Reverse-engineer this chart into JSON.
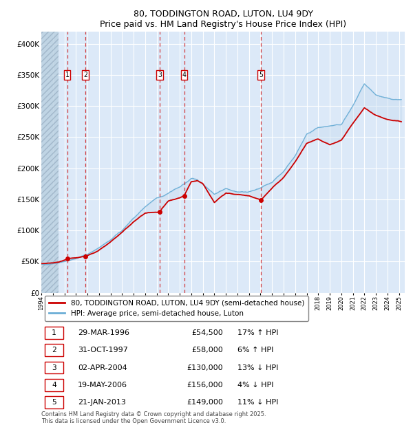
{
  "title": "80, TODDINGTON ROAD, LUTON, LU4 9DY",
  "subtitle": "Price paid vs. HM Land Registry's House Price Index (HPI)",
  "xlim_start": 1994.0,
  "xlim_end": 2025.5,
  "ylim_min": 0,
  "ylim_max": 420000,
  "yticks": [
    0,
    50000,
    100000,
    150000,
    200000,
    250000,
    300000,
    350000,
    400000
  ],
  "background_color": "#dce9f8",
  "hatch_region_end": 1995.5,
  "sale_dates_x": [
    1996.24,
    1997.83,
    2004.25,
    2006.38,
    2013.05
  ],
  "sale_prices_y": [
    54500,
    58000,
    130000,
    156000,
    149000
  ],
  "sale_labels": [
    "1",
    "2",
    "3",
    "4",
    "5"
  ],
  "sale_line_color": "#cc0000",
  "hpi_line_color": "#6baed6",
  "hpi_fill_color": "#c6dbef",
  "legend_house_label": "80, TODDINGTON ROAD, LUTON, LU4 9DY (semi-detached house)",
  "legend_hpi_label": "HPI: Average price, semi-detached house, Luton",
  "table_rows": [
    [
      "1",
      "29-MAR-1996",
      "£54,500",
      "17% ↑ HPI"
    ],
    [
      "2",
      "31-OCT-1997",
      "£58,000",
      "6% ↑ HPI"
    ],
    [
      "3",
      "02-APR-2004",
      "£130,000",
      "13% ↓ HPI"
    ],
    [
      "4",
      "19-MAY-2006",
      "£156,000",
      "4% ↓ HPI"
    ],
    [
      "5",
      "21-JAN-2013",
      "£149,000",
      "11% ↓ HPI"
    ]
  ],
  "footer_text": "Contains HM Land Registry data © Crown copyright and database right 2025.\nThis data is licensed under the Open Government Licence v3.0.",
  "grid_color": "#ffffff",
  "hpi_anchors": [
    [
      1994.0,
      45000
    ],
    [
      1995.0,
      47000
    ],
    [
      1996.0,
      50000
    ],
    [
      1997.0,
      55000
    ],
    [
      1998.0,
      62000
    ],
    [
      1999.0,
      72000
    ],
    [
      2000.0,
      85000
    ],
    [
      2001.0,
      100000
    ],
    [
      2002.0,
      120000
    ],
    [
      2003.0,
      138000
    ],
    [
      2004.0,
      152000
    ],
    [
      2004.5,
      155000
    ],
    [
      2005.0,
      160000
    ],
    [
      2006.0,
      170000
    ],
    [
      2007.0,
      183000
    ],
    [
      2007.5,
      182000
    ],
    [
      2008.0,
      175000
    ],
    [
      2009.0,
      158000
    ],
    [
      2010.0,
      168000
    ],
    [
      2011.0,
      162000
    ],
    [
      2012.0,
      162000
    ],
    [
      2013.0,
      168000
    ],
    [
      2014.0,
      178000
    ],
    [
      2015.0,
      195000
    ],
    [
      2016.0,
      220000
    ],
    [
      2017.0,
      255000
    ],
    [
      2018.0,
      265000
    ],
    [
      2019.0,
      268000
    ],
    [
      2020.0,
      270000
    ],
    [
      2021.0,
      300000
    ],
    [
      2022.0,
      335000
    ],
    [
      2023.0,
      318000
    ],
    [
      2024.0,
      312000
    ],
    [
      2025.2,
      310000
    ]
  ],
  "red_anchors": [
    [
      1994.0,
      46000
    ],
    [
      1995.5,
      49000
    ],
    [
      1996.24,
      54500
    ],
    [
      1997.83,
      58000
    ],
    [
      1999.0,
      68000
    ],
    [
      2000.0,
      82000
    ],
    [
      2001.0,
      97000
    ],
    [
      2002.0,
      114000
    ],
    [
      2003.0,
      128000
    ],
    [
      2004.25,
      130000
    ],
    [
      2005.0,
      148000
    ],
    [
      2006.0,
      152000
    ],
    [
      2006.38,
      156000
    ],
    [
      2007.0,
      178000
    ],
    [
      2007.5,
      180000
    ],
    [
      2008.0,
      175000
    ],
    [
      2009.0,
      145000
    ],
    [
      2010.0,
      160000
    ],
    [
      2011.0,
      158000
    ],
    [
      2012.0,
      156000
    ],
    [
      2013.05,
      149000
    ],
    [
      2014.0,
      168000
    ],
    [
      2015.0,
      185000
    ],
    [
      2016.0,
      210000
    ],
    [
      2017.0,
      240000
    ],
    [
      2018.0,
      247000
    ],
    [
      2019.0,
      238000
    ],
    [
      2020.0,
      245000
    ],
    [
      2021.0,
      272000
    ],
    [
      2022.0,
      297000
    ],
    [
      2023.0,
      285000
    ],
    [
      2024.0,
      278000
    ],
    [
      2025.2,
      275000
    ]
  ]
}
